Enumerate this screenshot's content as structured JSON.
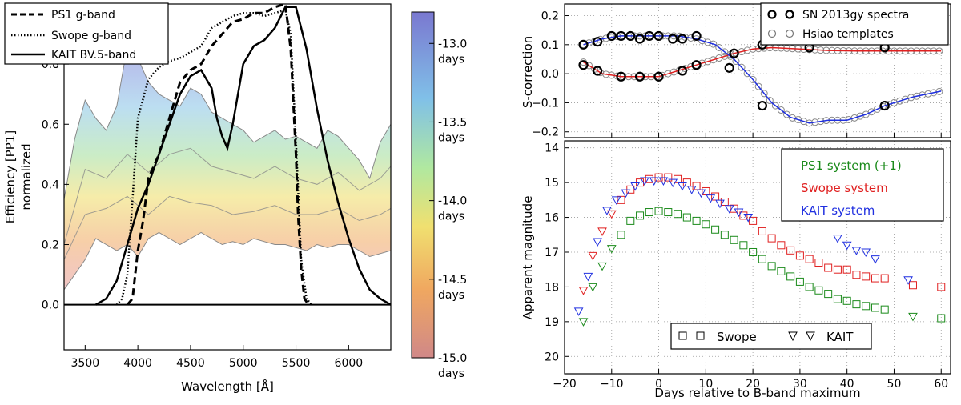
{
  "chart_data": [
    {
      "type": "line",
      "title": "",
      "xlabel": "Wavelength [Å]",
      "ylabel": "Efficiency [PP1]",
      "ylabel2": "normalized",
      "xlim": [
        3300,
        6400
      ],
      "ylim": [
        -0.15,
        1.0
      ],
      "xticks": [
        "3500",
        "4000",
        "4500",
        "5000",
        "5500",
        "6000"
      ],
      "yticks": [
        "0.0",
        "0.2",
        "0.4",
        "0.6",
        "0.8"
      ],
      "legend": [
        "PS1 g-band",
        "Swope g-band",
        "KAIT BV.5-band"
      ],
      "colorbar": {
        "ticks": [
          "-13.0\ndays",
          "-13.5\ndays",
          "-14.0\ndays",
          "-14.5\ndays",
          "-15.0\ndays"
        ],
        "labels": [
          "-13.0",
          "-13.5",
          "-14.0",
          "-14.5",
          "-15.0"
        ],
        "unit": "days",
        "range": [
          -15.0,
          -12.8
        ]
      },
      "series": [
        {
          "name": "PS1 g-band",
          "style": "dashed",
          "x": [
            3900,
            3950,
            4000,
            4050,
            4100,
            4200,
            4300,
            4400,
            4500,
            4600,
            4700,
            4800,
            4900,
            5000,
            5100,
            5200,
            5300,
            5400,
            5450,
            5500,
            5520,
            5550,
            5580,
            5620
          ],
          "y": [
            0.0,
            0.02,
            0.18,
            0.28,
            0.42,
            0.5,
            0.62,
            0.74,
            0.78,
            0.8,
            0.86,
            0.9,
            0.94,
            0.95,
            0.97,
            0.97,
            0.99,
            1.0,
            0.85,
            0.5,
            0.3,
            0.12,
            0.02,
            0.0
          ]
        },
        {
          "name": "Swope g-band",
          "style": "dotted",
          "x": [
            3800,
            3850,
            3900,
            3950,
            4000,
            4100,
            4200,
            4300,
            4400,
            4500,
            4600,
            4700,
            4800,
            4900,
            5000,
            5100,
            5200,
            5300,
            5400,
            5450,
            5500,
            5550,
            5600,
            5650
          ],
          "y": [
            0.0,
            0.02,
            0.1,
            0.35,
            0.62,
            0.75,
            0.79,
            0.81,
            0.82,
            0.84,
            0.86,
            0.92,
            0.94,
            0.96,
            0.97,
            0.97,
            0.96,
            0.97,
            0.98,
            0.9,
            0.55,
            0.15,
            0.02,
            0.0
          ]
        },
        {
          "name": "KAIT BV.5-band",
          "style": "solid",
          "x": [
            3600,
            3700,
            3800,
            3900,
            4000,
            4100,
            4200,
            4300,
            4400,
            4500,
            4600,
            4700,
            4750,
            4800,
            4850,
            4900,
            5000,
            5100,
            5200,
            5300,
            5400,
            5500,
            5600,
            5700,
            5800,
            5900,
            6000,
            6100,
            6200,
            6300,
            6400
          ],
          "y": [
            0.0,
            0.02,
            0.08,
            0.2,
            0.32,
            0.4,
            0.5,
            0.6,
            0.7,
            0.76,
            0.78,
            0.72,
            0.62,
            0.56,
            0.52,
            0.6,
            0.8,
            0.86,
            0.88,
            0.92,
            0.99,
            0.99,
            0.85,
            0.65,
            0.48,
            0.34,
            0.22,
            0.12,
            0.05,
            0.02,
            0.0
          ]
        }
      ],
      "spectrum_upper": {
        "x": [
          3300,
          3400,
          3500,
          3600,
          3700,
          3800,
          3900,
          4000,
          4100,
          4200,
          4300,
          4400,
          4500,
          4600,
          4700,
          4800,
          4900,
          5000,
          5100,
          5200,
          5300,
          5400,
          5500,
          5600,
          5700,
          5800,
          5900,
          6000,
          6100,
          6200,
          6300,
          6400
        ],
        "y": [
          0.35,
          0.55,
          0.68,
          0.62,
          0.58,
          0.66,
          0.86,
          0.82,
          0.74,
          0.7,
          0.68,
          0.66,
          0.72,
          0.7,
          0.64,
          0.62,
          0.6,
          0.58,
          0.54,
          0.56,
          0.58,
          0.55,
          0.56,
          0.54,
          0.52,
          0.58,
          0.56,
          0.52,
          0.48,
          0.42,
          0.54,
          0.6
        ]
      },
      "spectrum_lower": {
        "x": [
          3300,
          3400,
          3500,
          3600,
          3700,
          3800,
          3900,
          4000,
          4100,
          4200,
          4300,
          4400,
          4500,
          4600,
          4700,
          4800,
          4900,
          5000,
          5100,
          5200,
          5300,
          5400,
          5500,
          5600,
          5700,
          5800,
          5900,
          6000,
          6100,
          6200,
          6300,
          6400
        ],
        "y": [
          0.05,
          0.1,
          0.15,
          0.22,
          0.2,
          0.18,
          0.2,
          0.16,
          0.22,
          0.24,
          0.22,
          0.2,
          0.22,
          0.24,
          0.22,
          0.2,
          0.21,
          0.2,
          0.22,
          0.21,
          0.2,
          0.2,
          0.19,
          0.18,
          0.2,
          0.19,
          0.2,
          0.2,
          0.18,
          0.16,
          0.17,
          0.18
        ]
      },
      "spectrum_mid": [
        {
          "x": [
            3300,
            3500,
            3700,
            3900,
            4100,
            4300,
            4500,
            4700,
            4900,
            5100,
            5300,
            5500,
            5700,
            5900,
            6100,
            6300,
            6400
          ],
          "y": [
            0.2,
            0.45,
            0.42,
            0.5,
            0.44,
            0.5,
            0.52,
            0.46,
            0.44,
            0.42,
            0.46,
            0.42,
            0.4,
            0.44,
            0.38,
            0.42,
            0.46
          ]
        },
        {
          "x": [
            3300,
            3500,
            3700,
            3900,
            4100,
            4300,
            4500,
            4700,
            4900,
            5100,
            5300,
            5500,
            5700,
            5900,
            6100,
            6300,
            6400
          ],
          "y": [
            0.15,
            0.3,
            0.32,
            0.36,
            0.3,
            0.36,
            0.34,
            0.33,
            0.3,
            0.31,
            0.33,
            0.3,
            0.3,
            0.32,
            0.28,
            0.3,
            0.32
          ]
        }
      ]
    },
    {
      "type": "scatter",
      "title": "",
      "xlabel": "",
      "ylabel": "S-correction",
      "xlim": [
        -20,
        62
      ],
      "ylim": [
        -0.22,
        0.24
      ],
      "yticks": [
        "0.2",
        "0.1",
        "0.0",
        "−0.1",
        "−0.2"
      ],
      "legend": [
        "SN 2013gy spectra",
        "Hsiao templates"
      ],
      "series": [
        {
          "name": "red curve",
          "color": "#e02020",
          "x": [
            -16,
            -12,
            -8,
            -4,
            0,
            4,
            8,
            12,
            16,
            20,
            24,
            30,
            36,
            42,
            48,
            54,
            60
          ],
          "y": [
            0.04,
            0.0,
            -0.01,
            -0.01,
            -0.01,
            0.01,
            0.03,
            0.05,
            0.07,
            0.085,
            0.09,
            0.085,
            0.08,
            0.078,
            0.078,
            0.078,
            0.078
          ]
        },
        {
          "name": "blue curve",
          "color": "#2030e0",
          "x": [
            -16,
            -12,
            -8,
            -4,
            0,
            4,
            8,
            12,
            16,
            20,
            24,
            28,
            32,
            36,
            40,
            44,
            48,
            54,
            60
          ],
          "y": [
            0.1,
            0.12,
            0.13,
            0.13,
            0.13,
            0.13,
            0.12,
            0.1,
            0.05,
            -0.02,
            -0.1,
            -0.15,
            -0.17,
            -0.16,
            -0.16,
            -0.14,
            -0.11,
            -0.08,
            -0.06
          ]
        },
        {
          "name": "SN 2013gy spectra",
          "x": [
            -16,
            -16,
            -13,
            -13,
            -10,
            -8,
            -8,
            -6,
            -4,
            -4,
            -2,
            0,
            0,
            3,
            5,
            5,
            8,
            8,
            15,
            16,
            22,
            22,
            32,
            48,
            48
          ],
          "y": [
            0.1,
            0.03,
            0.11,
            0.01,
            0.13,
            0.13,
            -0.01,
            0.13,
            0.12,
            -0.01,
            0.13,
            0.13,
            -0.01,
            0.12,
            0.12,
            0.01,
            0.13,
            0.03,
            0.02,
            0.07,
            0.1,
            -0.11,
            0.09,
            0.09,
            -0.11
          ]
        }
      ]
    },
    {
      "type": "scatter",
      "title": "",
      "xlabel": "Days relative to B-band maximum",
      "ylabel": "Apparent magnitude",
      "xlim": [
        -20,
        62
      ],
      "ylim": [
        20.5,
        13.8
      ],
      "xticks": [
        "−20",
        "−10",
        "0",
        "10",
        "20",
        "30",
        "40",
        "50",
        "60"
      ],
      "yticks": [
        "14",
        "15",
        "16",
        "17",
        "18",
        "19",
        "20"
      ],
      "legend": [
        "PS1 system (+1)",
        "Swope system",
        "KAIT system"
      ],
      "marker_legend": [
        "Swope",
        "KAIT"
      ],
      "series": [
        {
          "name": "PS1 system (+1)",
          "color": "#1a8a1a",
          "x": [
            -16,
            -14,
            -12,
            -10,
            -8,
            -6,
            -4,
            -2,
            0,
            2,
            4,
            6,
            8,
            10,
            12,
            14,
            16,
            18,
            20,
            22,
            24,
            26,
            28,
            30,
            32,
            34,
            36,
            38,
            40,
            42,
            44,
            46,
            48,
            54,
            60
          ],
          "y": [
            19.0,
            18.0,
            17.4,
            16.9,
            16.5,
            16.1,
            15.95,
            15.85,
            15.82,
            15.85,
            15.9,
            16.0,
            16.1,
            16.2,
            16.35,
            16.5,
            16.65,
            16.8,
            17.0,
            17.2,
            17.4,
            17.55,
            17.7,
            17.85,
            18.0,
            18.1,
            18.2,
            18.35,
            18.4,
            18.5,
            18.55,
            18.6,
            18.65,
            18.85,
            18.9
          ]
        },
        {
          "name": "Swope system",
          "color": "#e02020",
          "x": [
            -16,
            -14,
            -12,
            -10,
            -8,
            -6,
            -4,
            -2,
            0,
            2,
            4,
            6,
            8,
            10,
            12,
            14,
            16,
            18,
            20,
            22,
            24,
            26,
            28,
            30,
            32,
            34,
            36,
            38,
            40,
            42,
            44,
            46,
            48,
            54,
            60
          ],
          "y": [
            18.1,
            17.1,
            16.4,
            15.9,
            15.5,
            15.2,
            15.0,
            14.9,
            14.85,
            14.85,
            14.9,
            15.0,
            15.1,
            15.25,
            15.4,
            15.55,
            15.75,
            15.95,
            16.1,
            16.4,
            16.6,
            16.8,
            16.95,
            17.1,
            17.2,
            17.3,
            17.45,
            17.5,
            17.5,
            17.65,
            17.7,
            17.75,
            17.75,
            17.95,
            18.0
          ]
        },
        {
          "name": "KAIT system",
          "color": "#2030e0",
          "x": [
            -17,
            -15,
            -13,
            -11,
            -9,
            -7,
            -5,
            -3,
            -1,
            1,
            3,
            5,
            7,
            9,
            11,
            13,
            15,
            17,
            19,
            38,
            40,
            42,
            44,
            46,
            53
          ],
          "y": [
            18.7,
            17.7,
            16.7,
            15.8,
            15.5,
            15.3,
            15.1,
            14.95,
            14.95,
            14.95,
            15.0,
            15.1,
            15.2,
            15.3,
            15.45,
            15.6,
            15.75,
            15.85,
            16.0,
            16.6,
            16.8,
            16.95,
            17.0,
            17.2,
            17.8
          ]
        }
      ]
    }
  ]
}
